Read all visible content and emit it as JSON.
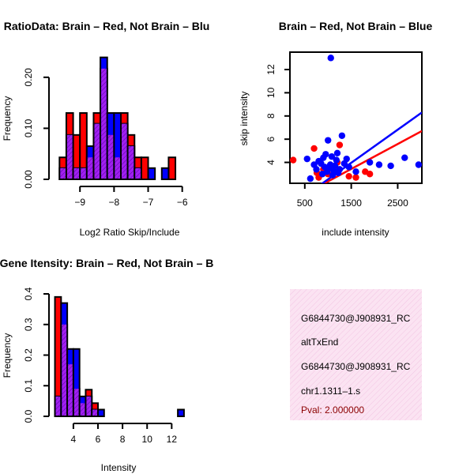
{
  "colors": {
    "red": "#ff0000",
    "blue": "#0000ff",
    "purple": "#a020f0",
    "pval": "#8b0000",
    "info_bg": "#fbe3f2"
  },
  "chart_data": [
    {
      "id": "ratio_hist",
      "type": "histogram",
      "title": "RatioData: Brain – Red, Not Brain – Blu",
      "xlabel": "Log2 Ratio Skip/Include",
      "ylabel": "Frequency",
      "xticks": [
        -9,
        -8,
        -7,
        -6
      ],
      "xtick_labels": [
        "−9",
        "−8",
        "−7",
        "−6"
      ],
      "yticks": [
        0.0,
        0.1,
        0.2
      ],
      "ytick_labels": [
        "0.00",
        "0.10",
        "0.20"
      ],
      "xlim": [
        -9.7,
        -5.9
      ],
      "ylim": [
        0,
        0.24
      ],
      "bin_width": 0.2,
      "red": [
        {
          "x0": -9.6,
          "value": 0.043
        },
        {
          "x0": -9.4,
          "value": 0.13
        },
        {
          "x0": -9.2,
          "value": 0.087
        },
        {
          "x0": -9.0,
          "value": 0.13
        },
        {
          "x0": -8.8,
          "value": 0.043
        },
        {
          "x0": -8.6,
          "value": 0.13
        },
        {
          "x0": -8.4,
          "value": 0.217
        },
        {
          "x0": -8.2,
          "value": 0.087
        },
        {
          "x0": -8.0,
          "value": 0.043
        },
        {
          "x0": -7.8,
          "value": 0.13
        },
        {
          "x0": -7.6,
          "value": 0.087
        },
        {
          "x0": -7.4,
          "value": 0.043
        },
        {
          "x0": -7.2,
          "value": 0.043
        },
        {
          "x0": -6.4,
          "value": 0.043
        }
      ],
      "blue": [
        {
          "x0": -9.6,
          "value": 0.022
        },
        {
          "x0": -9.4,
          "value": 0.087
        },
        {
          "x0": -9.2,
          "value": 0.022
        },
        {
          "x0": -9.0,
          "value": 0.022
        },
        {
          "x0": -8.8,
          "value": 0.065
        },
        {
          "x0": -8.6,
          "value": 0.109
        },
        {
          "x0": -8.4,
          "value": 0.239
        },
        {
          "x0": -8.2,
          "value": 0.13
        },
        {
          "x0": -8.0,
          "value": 0.13
        },
        {
          "x0": -7.8,
          "value": 0.109
        },
        {
          "x0": -7.6,
          "value": 0.065
        },
        {
          "x0": -7.4,
          "value": 0.022
        },
        {
          "x0": -7.0,
          "value": 0.022
        },
        {
          "x0": -6.6,
          "value": 0.022
        }
      ]
    },
    {
      "id": "scatter",
      "type": "scatter",
      "title": "Brain – Red, Not Brain – Blue",
      "xlabel": "include intensity",
      "ylabel": "skip intensity",
      "xticks": [
        500,
        1500,
        2500
      ],
      "xtick_labels": [
        "500",
        "1500",
        "2500"
      ],
      "yticks": [
        4,
        6,
        8,
        10,
        12
      ],
      "ytick_labels": [
        "4",
        "6",
        "8",
        "10",
        "12"
      ],
      "xlim": [
        180,
        3020
      ],
      "ylim": [
        2.2,
        13.5
      ],
      "points_red": [
        [
          250,
          4.2
        ],
        [
          700,
          5.2
        ],
        [
          760,
          3.1
        ],
        [
          800,
          2.7
        ],
        [
          900,
          3.4
        ],
        [
          1000,
          3.0
        ],
        [
          1200,
          4.0
        ],
        [
          1250,
          5.5
        ],
        [
          1450,
          2.8
        ],
        [
          1600,
          2.7
        ],
        [
          1800,
          3.2
        ],
        [
          1900,
          3.0
        ]
      ],
      "points_blue": [
        [
          550,
          4.3
        ],
        [
          620,
          2.6
        ],
        [
          700,
          3.8
        ],
        [
          750,
          3.4
        ],
        [
          800,
          4.1
        ],
        [
          850,
          3.9
        ],
        [
          880,
          3.0
        ],
        [
          900,
          4.4
        ],
        [
          930,
          3.6
        ],
        [
          950,
          4.7
        ],
        [
          980,
          3.2
        ],
        [
          1000,
          5.9
        ],
        [
          1020,
          3.5
        ],
        [
          1050,
          3.8
        ],
        [
          1060,
          13.0
        ],
        [
          1080,
          4.5
        ],
        [
          1100,
          2.9
        ],
        [
          1120,
          3.3
        ],
        [
          1150,
          3.7
        ],
        [
          1180,
          4.2
        ],
        [
          1200,
          4.8
        ],
        [
          1220,
          3.1
        ],
        [
          1250,
          3.4
        ],
        [
          1300,
          6.3
        ],
        [
          1350,
          3.9
        ],
        [
          1400,
          4.3
        ],
        [
          1450,
          3.6
        ],
        [
          1600,
          3.2
        ],
        [
          1900,
          4.0
        ],
        [
          2100,
          3.8
        ],
        [
          2350,
          3.7
        ],
        [
          2650,
          4.4
        ],
        [
          2950,
          3.8
        ]
      ],
      "fit_red": [
        [
          180,
          0.6
        ],
        [
          3020,
          6.7
        ]
      ],
      "fit_blue": [
        [
          180,
          0.2
        ],
        [
          3020,
          8.3
        ]
      ]
    },
    {
      "id": "intensity_hist",
      "type": "histogram",
      "title": "Gene Itensity: Brain – Red, Not Brain – B",
      "xlabel": "Intensity",
      "ylabel": "Frequency",
      "xticks": [
        4,
        6,
        8,
        10,
        12
      ],
      "xtick_labels": [
        "4",
        "6",
        "8",
        "10",
        "12"
      ],
      "yticks": [
        0.0,
        0.1,
        0.2,
        0.3,
        0.4
      ],
      "ytick_labels": [
        "0.0",
        "0.1",
        "0.2",
        "0.3",
        "0.4"
      ],
      "xlim": [
        2.4,
        13.2
      ],
      "ylim": [
        0,
        0.4
      ],
      "bin_width": 0.5,
      "red": [
        {
          "x0": 2.5,
          "value": 0.39
        },
        {
          "x0": 3.0,
          "value": 0.3
        },
        {
          "x0": 3.5,
          "value": 0.17
        },
        {
          "x0": 4.0,
          "value": 0.09
        },
        {
          "x0": 4.5,
          "value": 0.043
        },
        {
          "x0": 5.0,
          "value": 0.087
        },
        {
          "x0": 5.5,
          "value": 0.043
        }
      ],
      "blue": [
        {
          "x0": 2.5,
          "value": 0.065
        },
        {
          "x0": 3.0,
          "value": 0.37
        },
        {
          "x0": 3.5,
          "value": 0.22
        },
        {
          "x0": 4.0,
          "value": 0.22
        },
        {
          "x0": 4.5,
          "value": 0.065
        },
        {
          "x0": 5.0,
          "value": 0.065
        },
        {
          "x0": 5.5,
          "value": 0.022
        },
        {
          "x0": 6.0,
          "value": 0.022
        },
        {
          "x0": 12.5,
          "value": 0.022
        }
      ]
    }
  ],
  "info_panel": {
    "lines": [
      "G6844730@J908931_RC",
      "altTxEnd",
      "G6844730@J908931_RC",
      "chr1.1311–1.s"
    ],
    "pval": "Pval: 2.000000"
  }
}
